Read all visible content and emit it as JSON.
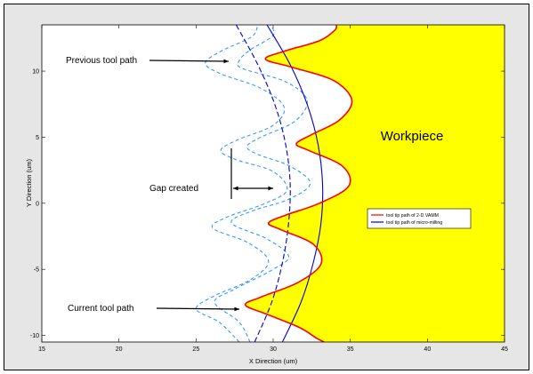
{
  "chart_data": {
    "type": "line",
    "xlabel": "X Direction (um)",
    "ylabel": "Y Direction (um)",
    "xlim": [
      15,
      45
    ],
    "ylim": [
      -10.5,
      13.5
    ],
    "x_ticks": [
      15,
      20,
      25,
      30,
      35,
      40,
      45
    ],
    "y_ticks": [
      -10,
      -5,
      0,
      5,
      10
    ],
    "grid": false,
    "legend_position": "middle-right",
    "region_fill_color": "#ffff00",
    "series": [
      {
        "name": "tool tip path of 2-D VAMM",
        "color": "#ff0000",
        "style": "solid",
        "points": [
          [
            33.3,
            -10.5
          ],
          [
            32.8,
            -10.2
          ],
          [
            31.7,
            -9.4
          ],
          [
            29.6,
            -8.4
          ],
          [
            28.2,
            -7.7
          ],
          [
            29.2,
            -7.1
          ],
          [
            31.6,
            -6.0
          ],
          [
            33.1,
            -4.6
          ],
          [
            32.6,
            -3.1
          ],
          [
            30.5,
            -2.0
          ],
          [
            29.7,
            -1.5
          ],
          [
            30.8,
            -0.9
          ],
          [
            33.0,
            0.0
          ],
          [
            34.9,
            1.3
          ],
          [
            34.5,
            2.8
          ],
          [
            32.3,
            4.0
          ],
          [
            31.5,
            4.5
          ],
          [
            32.5,
            5.2
          ],
          [
            34.3,
            6.3
          ],
          [
            35.1,
            7.8
          ],
          [
            33.9,
            9.3
          ],
          [
            31.2,
            10.3
          ],
          [
            29.5,
            10.9
          ],
          [
            30.7,
            11.5
          ],
          [
            33.0,
            12.3
          ],
          [
            34.0,
            13.1
          ],
          [
            34.1,
            13.5
          ]
        ]
      },
      {
        "name": "tool tip path of micro-milling",
        "color": "#0000cc",
        "style": "solid",
        "points": [
          [
            30.6,
            -10.5
          ],
          [
            31.8,
            -7.5
          ],
          [
            32.6,
            -4.5
          ],
          [
            33.1,
            -1.5
          ],
          [
            33.2,
            1.5
          ],
          [
            32.9,
            4.5
          ],
          [
            32.2,
            7.5
          ],
          [
            31.1,
            10.5
          ],
          [
            29.6,
            13.5
          ]
        ]
      },
      {
        "color": "#0000cc",
        "style": "dashed",
        "points": [
          [
            28.8,
            -10.5
          ],
          [
            29.9,
            -7.5
          ],
          [
            30.6,
            -4.5
          ],
          [
            31.0,
            -1.5
          ],
          [
            31.1,
            1.5
          ],
          [
            30.8,
            4.5
          ],
          [
            30.1,
            7.5
          ],
          [
            29.0,
            10.5
          ],
          [
            27.6,
            13.5
          ]
        ]
      },
      {
        "color": "#3399ff",
        "style": "dashed",
        "points": [
          [
            28.5,
            -10.5
          ],
          [
            27.8,
            -9.0
          ],
          [
            26.2,
            -7.5
          ],
          [
            27.5,
            -6.5
          ],
          [
            30.0,
            -5.0
          ],
          [
            31.0,
            -4.0
          ],
          [
            29.6,
            -2.7
          ],
          [
            27.3,
            -1.5
          ],
          [
            28.6,
            -0.6
          ],
          [
            31.0,
            0.3
          ],
          [
            32.4,
            1.5
          ],
          [
            31.1,
            2.8
          ],
          [
            29.0,
            3.7
          ],
          [
            28.3,
            4.3
          ],
          [
            29.2,
            5.0
          ],
          [
            31.4,
            6.2
          ],
          [
            32.2,
            7.8
          ],
          [
            30.8,
            9.2
          ],
          [
            28.0,
            10.2
          ],
          [
            27.8,
            10.8
          ],
          [
            28.5,
            11.6
          ],
          [
            30.0,
            12.7
          ],
          [
            29.8,
            13.5
          ]
        ]
      },
      {
        "color": "#3399ff",
        "style": "dashed",
        "points": [
          [
            27.8,
            -10.5
          ],
          [
            26.5,
            -9.0
          ],
          [
            25.0,
            -8.0
          ],
          [
            26.2,
            -7.0
          ],
          [
            28.5,
            -5.8
          ],
          [
            29.7,
            -4.4
          ],
          [
            28.4,
            -3.0
          ],
          [
            26.1,
            -1.9
          ],
          [
            26.9,
            -1.1
          ],
          [
            29.5,
            0.0
          ],
          [
            30.9,
            1.0
          ],
          [
            30.0,
            2.4
          ],
          [
            27.6,
            3.3
          ],
          [
            26.6,
            4.0
          ],
          [
            27.7,
            4.8
          ],
          [
            30.0,
            5.9
          ],
          [
            30.7,
            7.3
          ],
          [
            29.2,
            8.7
          ],
          [
            26.6,
            9.8
          ],
          [
            25.6,
            10.6
          ],
          [
            26.6,
            11.5
          ],
          [
            28.6,
            12.6
          ],
          [
            29.0,
            13.5
          ]
        ]
      }
    ],
    "annotations": {
      "previous": "Previous tool path",
      "current": "Current tool path",
      "gap": "Gap created",
      "workpiece": "Workpiece"
    }
  }
}
